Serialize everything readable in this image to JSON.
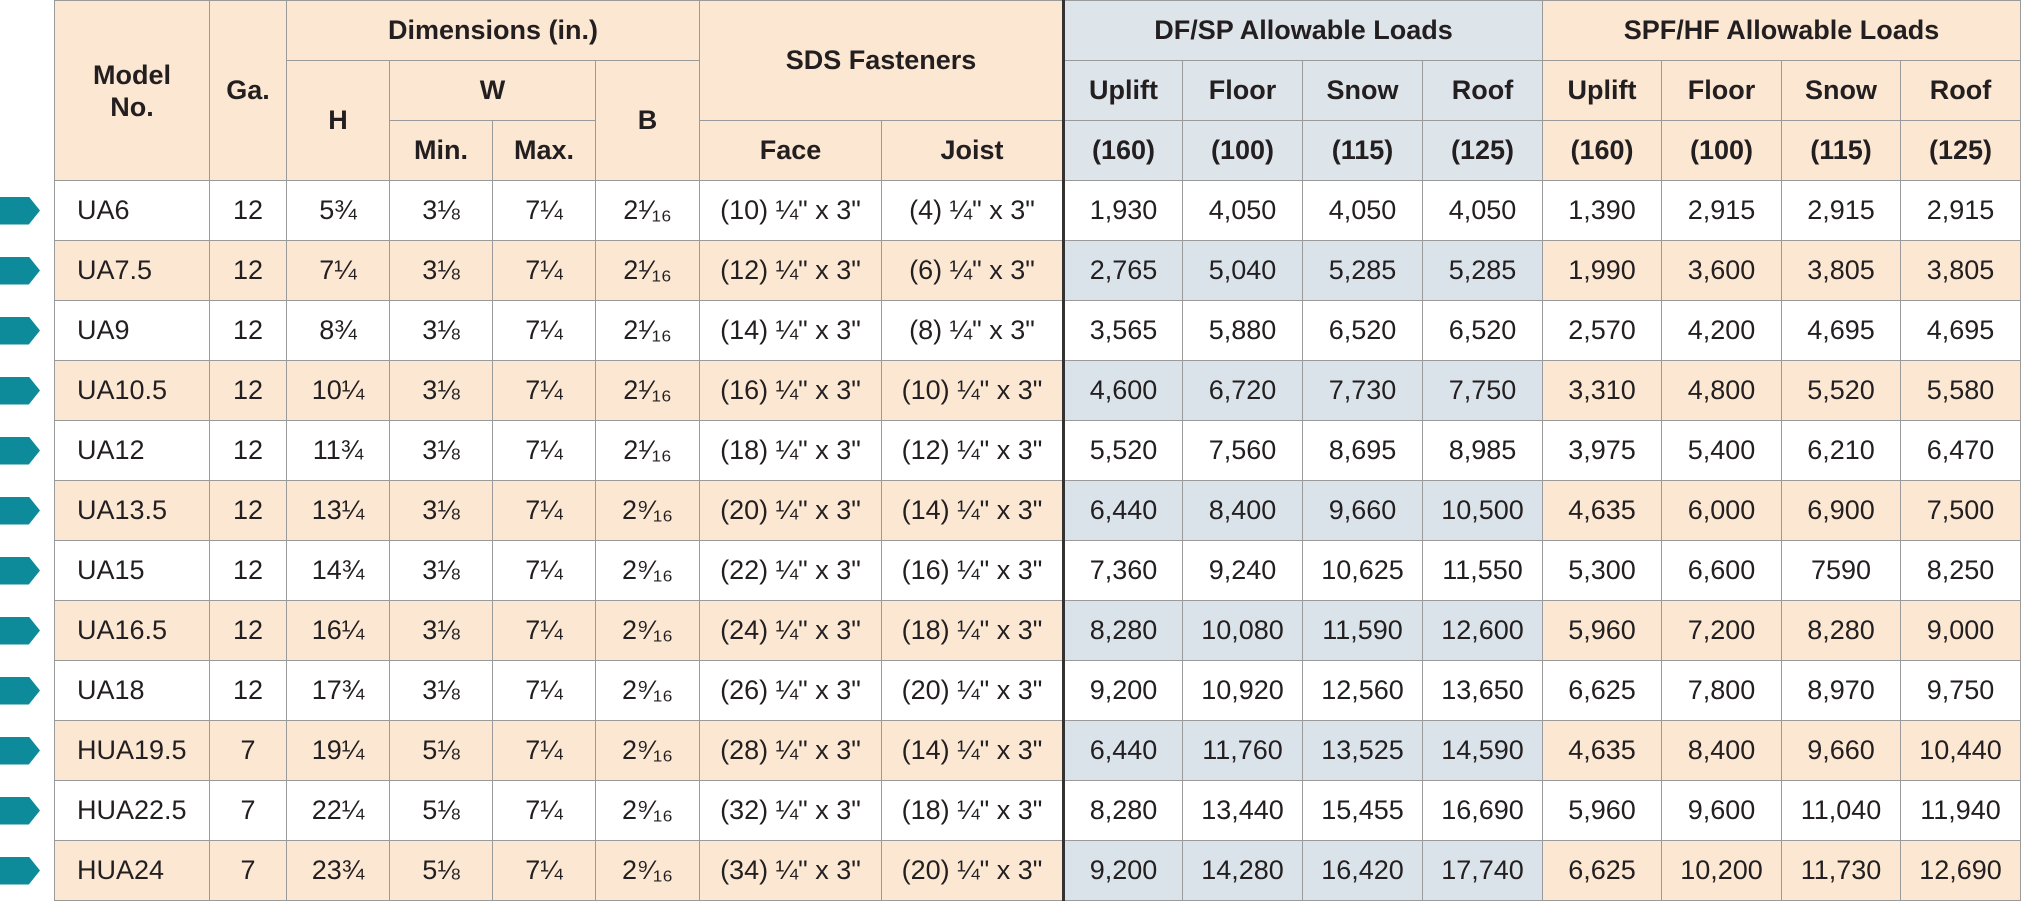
{
  "header": {
    "model": "Model No.",
    "ga": "Ga.",
    "dimensions": "Dimensions (in.)",
    "h": "H",
    "w": "W",
    "w_min": "Min.",
    "w_max": "Max.",
    "b": "B",
    "sds": "SDS Fasteners",
    "face": "Face",
    "joist": "Joist",
    "dfsp": "DF/SP Allowable Loads",
    "spfhf": "SPF/HF Allowable Loads",
    "loads": [
      "Uplift",
      "Floor",
      "Snow",
      "Roof"
    ],
    "durations": [
      "(160)",
      "(100)",
      "(115)",
      "(125)"
    ]
  },
  "rows": [
    [
      "UA6",
      "12",
      "5¾",
      "3⅛",
      "7¼",
      "2¹⁄₁₆",
      "(10) ¼\" x 3\"",
      "(4) ¼\" x 3\"",
      "1,930",
      "4,050",
      "4,050",
      "4,050",
      "1,390",
      "2,915",
      "2,915",
      "2,915"
    ],
    [
      "UA7.5",
      "12",
      "7¼",
      "3⅛",
      "7¼",
      "2¹⁄₁₆",
      "(12) ¼\" x 3\"",
      "(6) ¼\" x 3\"",
      "2,765",
      "5,040",
      "5,285",
      "5,285",
      "1,990",
      "3,600",
      "3,805",
      "3,805"
    ],
    [
      "UA9",
      "12",
      "8¾",
      "3⅛",
      "7¼",
      "2¹⁄₁₆",
      "(14) ¼\" x 3\"",
      "(8) ¼\" x 3\"",
      "3,565",
      "5,880",
      "6,520",
      "6,520",
      "2,570",
      "4,200",
      "4,695",
      "4,695"
    ],
    [
      "UA10.5",
      "12",
      "10¼",
      "3⅛",
      "7¼",
      "2¹⁄₁₆",
      "(16) ¼\" x 3\"",
      "(10) ¼\" x 3\"",
      "4,600",
      "6,720",
      "7,730",
      "7,750",
      "3,310",
      "4,800",
      "5,520",
      "5,580"
    ],
    [
      "UA12",
      "12",
      "11¾",
      "3⅛",
      "7¼",
      "2¹⁄₁₆",
      "(18) ¼\" x 3\"",
      "(12) ¼\" x 3\"",
      "5,520",
      "7,560",
      "8,695",
      "8,985",
      "3,975",
      "5,400",
      "6,210",
      "6,470"
    ],
    [
      "UA13.5",
      "12",
      "13¼",
      "3⅛",
      "7¼",
      "2⁹⁄₁₆",
      "(20) ¼\" x 3\"",
      "(14) ¼\" x 3\"",
      "6,440",
      "8,400",
      "9,660",
      "10,500",
      "4,635",
      "6,000",
      "6,900",
      "7,500"
    ],
    [
      "UA15",
      "12",
      "14¾",
      "3⅛",
      "7¼",
      "2⁹⁄₁₆",
      "(22) ¼\" x 3\"",
      "(16) ¼\" x 3\"",
      "7,360",
      "9,240",
      "10,625",
      "11,550",
      "5,300",
      "6,600",
      "7590",
      "8,250"
    ],
    [
      "UA16.5",
      "12",
      "16¼",
      "3⅛",
      "7¼",
      "2⁹⁄₁₆",
      "(24) ¼\" x 3\"",
      "(18) ¼\" x 3\"",
      "8,280",
      "10,080",
      "11,590",
      "12,600",
      "5,960",
      "7,200",
      "8,280",
      "9,000"
    ],
    [
      "UA18",
      "12",
      "17¾",
      "3⅛",
      "7¼",
      "2⁹⁄₁₆",
      "(26) ¼\" x 3\"",
      "(20) ¼\" x 3\"",
      "9,200",
      "10,920",
      "12,560",
      "13,650",
      "6,625",
      "7,800",
      "8,970",
      "9,750"
    ],
    [
      "HUA19.5",
      "7",
      "19¼",
      "5⅛",
      "7¼",
      "2⁹⁄₁₆",
      "(28) ¼\" x 3\"",
      "(14) ¼\" x 3\"",
      "6,440",
      "11,760",
      "13,525",
      "14,590",
      "4,635",
      "8,400",
      "9,660",
      "10,440"
    ],
    [
      "HUA22.5",
      "7",
      "22¼",
      "5⅛",
      "7¼",
      "2⁹⁄₁₆",
      "(32) ¼\" x 3\"",
      "(18) ¼\" x 3\"",
      "8,280",
      "13,440",
      "15,455",
      "16,690",
      "5,960",
      "9,600",
      "11,040",
      "11,940"
    ],
    [
      "HUA24",
      "7",
      "23¾",
      "5⅛",
      "7¼",
      "2⁹⁄₁₆",
      "(34) ¼\" x 3\"",
      "(20) ¼\" x 3\"",
      "9,200",
      "14,280",
      "16,420",
      "17,740",
      "6,625",
      "10,200",
      "11,730",
      "12,690"
    ]
  ]
}
